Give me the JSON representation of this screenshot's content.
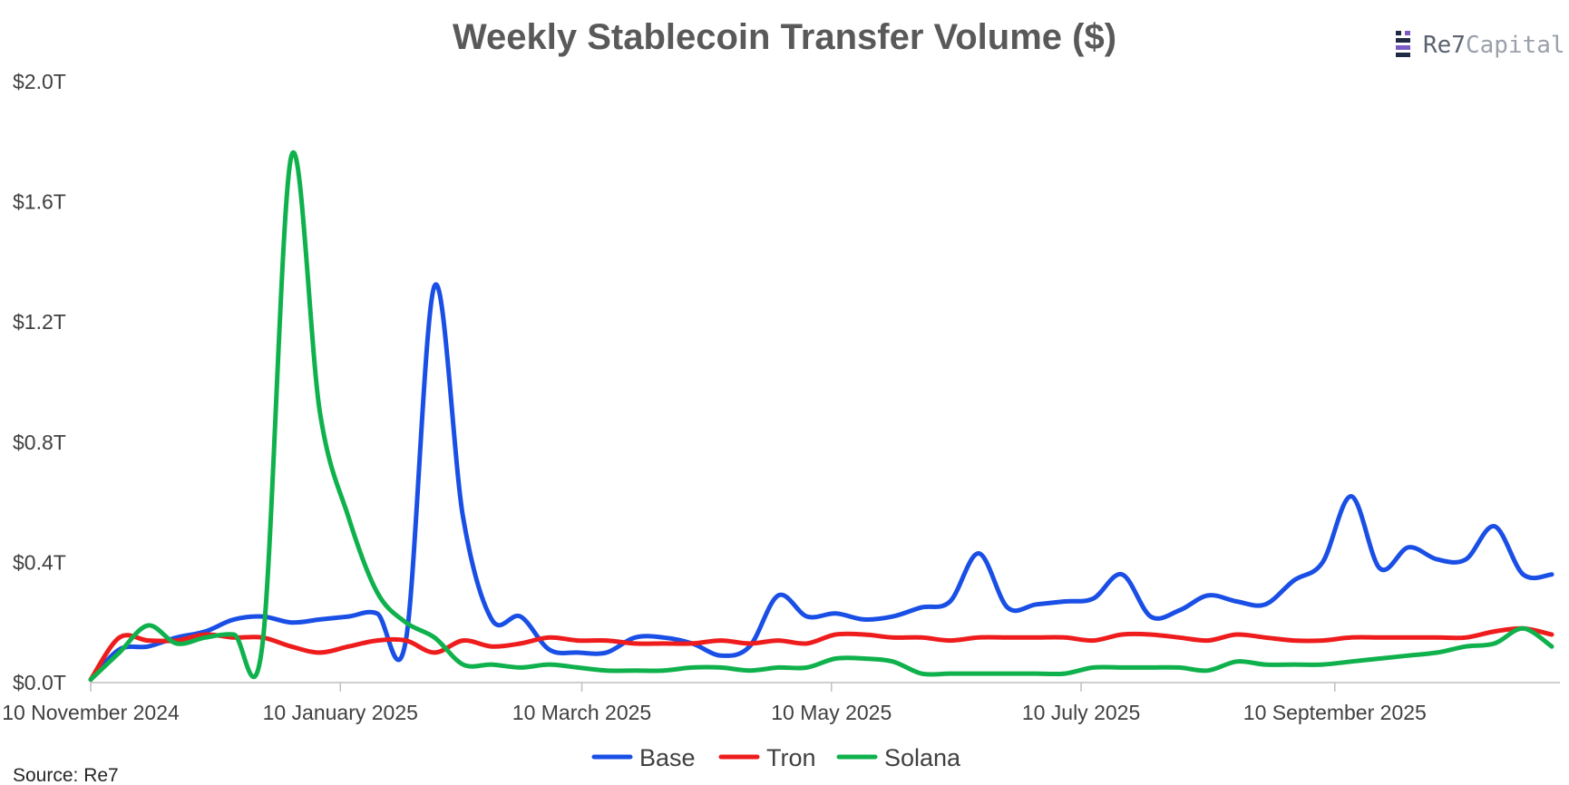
{
  "brand": {
    "name_part1": "Re7",
    "name_part2": "Capital",
    "icon": "re7-logo-icon",
    "colors": [
      "#1f2a44",
      "#7b5cc4"
    ]
  },
  "source": "Source: Re7",
  "chart_data": {
    "type": "line",
    "title": "Weekly Stablecoin Transfer Volume ($)",
    "xlabel": "",
    "ylabel": "",
    "ylim": [
      0,
      2.0
    ],
    "y_unit": "T",
    "y_ticks": [
      {
        "value": 0.0,
        "label": "$0.0T"
      },
      {
        "value": 0.4,
        "label": "$0.4T"
      },
      {
        "value": 0.8,
        "label": "$0.8T"
      },
      {
        "value": 1.2,
        "label": "$1.2T"
      },
      {
        "value": 1.6,
        "label": "$1.6T"
      },
      {
        "value": 2.0,
        "label": "$2.0T"
      }
    ],
    "x_ticks": [
      {
        "date": "2024-11-10",
        "label": "10 November 2024"
      },
      {
        "date": "2025-01-10",
        "label": "10 January 2025"
      },
      {
        "date": "2025-03-10",
        "label": "10 March 2025"
      },
      {
        "date": "2025-05-10",
        "label": "10 May 2025"
      },
      {
        "date": "2025-07-10",
        "label": "10 July 2025"
      },
      {
        "date": "2025-09-10",
        "label": "10 September 2025"
      }
    ],
    "xlim": [
      "2024-11-10",
      "2025-11-04"
    ],
    "grid": false,
    "legend": "bottom-center",
    "x": [
      "2024-11-10",
      "2024-11-17",
      "2024-11-24",
      "2024-12-01",
      "2024-12-08",
      "2024-12-15",
      "2024-12-22",
      "2024-12-29",
      "2025-01-05",
      "2025-01-12",
      "2025-01-19",
      "2025-01-26",
      "2025-02-02",
      "2025-02-09",
      "2025-02-16",
      "2025-02-23",
      "2025-03-02",
      "2025-03-09",
      "2025-03-16",
      "2025-03-23",
      "2025-03-30",
      "2025-04-06",
      "2025-04-13",
      "2025-04-20",
      "2025-04-27",
      "2025-05-04",
      "2025-05-11",
      "2025-05-18",
      "2025-05-25",
      "2025-06-01",
      "2025-06-08",
      "2025-06-15",
      "2025-06-22",
      "2025-06-29",
      "2025-07-06",
      "2025-07-13",
      "2025-07-20",
      "2025-07-27",
      "2025-08-03",
      "2025-08-10",
      "2025-08-17",
      "2025-08-24",
      "2025-08-31",
      "2025-09-07",
      "2025-09-14",
      "2025-09-21",
      "2025-09-28",
      "2025-10-05",
      "2025-10-12",
      "2025-10-19",
      "2025-10-26",
      "2025-11-02"
    ],
    "series": [
      {
        "name": "Base",
        "color": "#1a4fe6",
        "values": [
          0.01,
          0.11,
          0.12,
          0.15,
          0.17,
          0.21,
          0.22,
          0.2,
          0.21,
          0.22,
          0.23,
          0.14,
          1.32,
          0.55,
          0.21,
          0.22,
          0.11,
          0.1,
          0.1,
          0.15,
          0.15,
          0.13,
          0.09,
          0.12,
          0.29,
          0.22,
          0.23,
          0.21,
          0.22,
          0.25,
          0.27,
          0.43,
          0.25,
          0.26,
          0.27,
          0.28,
          0.36,
          0.22,
          0.24,
          0.29,
          0.27,
          0.26,
          0.34,
          0.4,
          0.62,
          0.38,
          0.45,
          0.41,
          0.41,
          0.52,
          0.36,
          0.36
        ]
      },
      {
        "name": "Tron",
        "color": "#ee1c1c",
        "values": [
          0.01,
          0.15,
          0.14,
          0.14,
          0.16,
          0.15,
          0.15,
          0.12,
          0.1,
          0.12,
          0.14,
          0.14,
          0.1,
          0.14,
          0.12,
          0.13,
          0.15,
          0.14,
          0.14,
          0.13,
          0.13,
          0.13,
          0.14,
          0.13,
          0.14,
          0.13,
          0.16,
          0.16,
          0.15,
          0.15,
          0.14,
          0.15,
          0.15,
          0.15,
          0.15,
          0.14,
          0.16,
          0.16,
          0.15,
          0.14,
          0.16,
          0.15,
          0.14,
          0.14,
          0.15,
          0.15,
          0.15,
          0.15,
          0.15,
          0.17,
          0.18,
          0.16
        ]
      },
      {
        "name": "Solana",
        "color": "#0fb14c",
        "values": [
          0.01,
          0.1,
          0.19,
          0.13,
          0.15,
          0.16,
          0.13,
          1.75,
          0.9,
          0.55,
          0.3,
          0.2,
          0.15,
          0.06,
          0.06,
          0.05,
          0.06,
          0.05,
          0.04,
          0.04,
          0.04,
          0.05,
          0.05,
          0.04,
          0.05,
          0.05,
          0.08,
          0.08,
          0.07,
          0.03,
          0.03,
          0.03,
          0.03,
          0.03,
          0.03,
          0.05,
          0.05,
          0.05,
          0.05,
          0.04,
          0.07,
          0.06,
          0.06,
          0.06,
          0.07,
          0.08,
          0.09,
          0.1,
          0.12,
          0.13,
          0.18,
          0.12
        ]
      }
    ]
  }
}
